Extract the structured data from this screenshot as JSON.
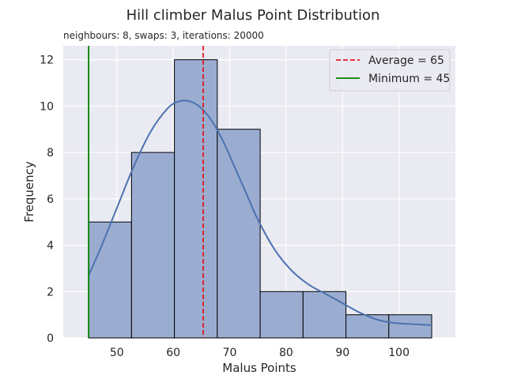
{
  "chart_data": {
    "type": "bar",
    "title": "Hill climber Malus Point Distribution",
    "subtitle": "neighbours: 8, swaps: 3, iterations: 20000",
    "xlabel": "Malus Points",
    "ylabel": "Frequency",
    "xlim": [
      40.5,
      110
    ],
    "ylim": [
      0,
      12.6
    ],
    "xticks": [
      50,
      60,
      70,
      80,
      90,
      100
    ],
    "yticks": [
      0,
      2,
      4,
      6,
      8,
      10,
      12
    ],
    "grid": true,
    "legend_position": "top-right",
    "bins": [
      {
        "start": 45,
        "end": 52.6,
        "count": 5
      },
      {
        "start": 52.6,
        "end": 60.2,
        "count": 8
      },
      {
        "start": 60.2,
        "end": 67.8,
        "count": 12
      },
      {
        "start": 67.8,
        "end": 75.4,
        "count": 9
      },
      {
        "start": 75.4,
        "end": 83.0,
        "count": 2
      },
      {
        "start": 83.0,
        "end": 90.6,
        "count": 2
      },
      {
        "start": 90.6,
        "end": 98.2,
        "count": 1
      },
      {
        "start": 98.2,
        "end": 105.8,
        "count": 1
      }
    ],
    "kde": {
      "x": [
        45,
        47,
        50,
        53,
        56,
        59,
        61,
        63,
        65,
        67,
        69,
        71,
        73,
        75,
        78,
        81,
        84,
        87,
        90,
        93,
        96,
        99,
        102,
        105.8
      ],
      "y": [
        2.7,
        3.8,
        5.6,
        7.4,
        8.9,
        9.9,
        10.2,
        10.2,
        9.9,
        9.3,
        8.4,
        7.3,
        6.2,
        5.1,
        3.8,
        2.9,
        2.3,
        1.9,
        1.5,
        1.1,
        0.8,
        0.65,
        0.6,
        0.55
      ]
    },
    "reference_lines": [
      {
        "label": "Average = 65",
        "x": 65.3,
        "color": "#e41a1c",
        "style": "dashed"
      },
      {
        "label": "Minimum = 45",
        "x": 45,
        "color": "#008000",
        "style": "solid"
      }
    ],
    "colors": {
      "bar_fill": "#9aadd1",
      "bar_edge": "#000000",
      "kde_line": "#4c72b0",
      "plot_background": "#eaeaf2",
      "grid": "#ffffff"
    }
  }
}
